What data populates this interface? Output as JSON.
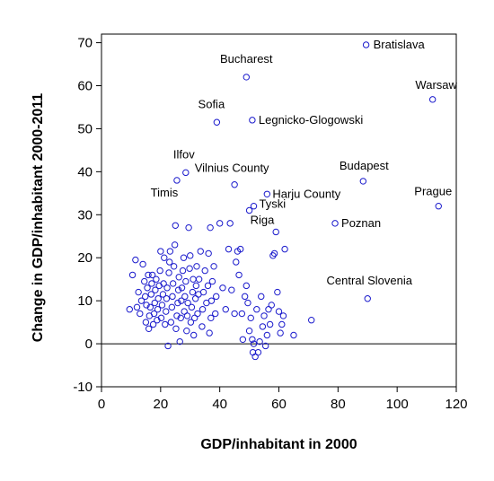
{
  "chart_data": {
    "type": "scatter",
    "title": "",
    "xlabel": "GDP/inhabitant in 2000",
    "ylabel": "Change in GDP/inhabitant 2000-2011",
    "xlim": [
      0,
      120
    ],
    "ylim": [
      -10,
      72
    ],
    "xticks": [
      0,
      20,
      40,
      60,
      80,
      100,
      120
    ],
    "yticks": [
      -10,
      0,
      10,
      20,
      30,
      40,
      50,
      60,
      70
    ],
    "zero_line": true,
    "grid": false,
    "marker": "open-circle",
    "colors": {
      "marker": "#1a1acc",
      "axis": "#000000",
      "zero_line": "#000000"
    },
    "labeled_points": [
      {
        "label": "Bratislava",
        "x": 89.5,
        "y": 69.5
      },
      {
        "label": "Bucharest",
        "x": 49,
        "y": 62
      },
      {
        "label": "Warsaw",
        "x": 112,
        "y": 56.8
      },
      {
        "label": "Sofia",
        "x": 39,
        "y": 51.5
      },
      {
        "label": "Legnicko-Glogowski",
        "x": 51,
        "y": 52
      },
      {
        "label": "Ilfov",
        "x": 28.5,
        "y": 39.8
      },
      {
        "label": "Vilnius County",
        "x": 45,
        "y": 37
      },
      {
        "label": "Budapest",
        "x": 88.5,
        "y": 37.8
      },
      {
        "label": "Timis",
        "x": 25.5,
        "y": 38
      },
      {
        "label": "Harju County",
        "x": 56,
        "y": 34.8
      },
      {
        "label": "Prague",
        "x": 114,
        "y": 32
      },
      {
        "label": "Tyski",
        "x": 51.5,
        "y": 32
      },
      {
        "label": "Riga",
        "x": 50,
        "y": 31
      },
      {
        "label": "Poznan",
        "x": 79,
        "y": 28
      },
      {
        "label": "Central Slovenia",
        "x": 90,
        "y": 10.5
      }
    ],
    "points": [
      [
        9.5,
        8
      ],
      [
        10.5,
        16
      ],
      [
        11.5,
        19.5
      ],
      [
        12,
        8.5
      ],
      [
        12.5,
        12
      ],
      [
        13,
        7
      ],
      [
        13.5,
        10
      ],
      [
        14,
        18.5
      ],
      [
        14.5,
        14.5
      ],
      [
        14.8,
        11
      ],
      [
        15,
        5
      ],
      [
        15.2,
        9
      ],
      [
        15.5,
        13
      ],
      [
        15.8,
        16
      ],
      [
        16,
        3.5
      ],
      [
        16.2,
        6.5
      ],
      [
        16.5,
        8.5
      ],
      [
        16.8,
        11.5
      ],
      [
        17,
        14
      ],
      [
        17.2,
        16
      ],
      [
        17.5,
        4.5
      ],
      [
        17.8,
        7
      ],
      [
        18,
        9.5
      ],
      [
        18.2,
        12.5
      ],
      [
        18.5,
        15
      ],
      [
        18.8,
        5.5
      ],
      [
        19,
        8
      ],
      [
        19.2,
        10.5
      ],
      [
        19.5,
        13.5
      ],
      [
        19.8,
        17
      ],
      [
        20,
        21.5
      ],
      [
        20.2,
        6
      ],
      [
        20.5,
        9
      ],
      [
        20.8,
        11.5
      ],
      [
        21,
        14
      ],
      [
        21.2,
        20
      ],
      [
        21.5,
        4.5
      ],
      [
        21.8,
        7.5
      ],
      [
        22,
        10.5
      ],
      [
        22.2,
        13
      ],
      [
        22.5,
        -0.5
      ],
      [
        22.8,
        16.5
      ],
      [
        23,
        19
      ],
      [
        23.2,
        21.5
      ],
      [
        23.5,
        5
      ],
      [
        23.8,
        8.5
      ],
      [
        24,
        11
      ],
      [
        24.2,
        14
      ],
      [
        24.5,
        18
      ],
      [
        24.8,
        23
      ],
      [
        25,
        27.5
      ],
      [
        25.2,
        3.5
      ],
      [
        25.5,
        6.5
      ],
      [
        25.8,
        9.5
      ],
      [
        26,
        12.5
      ],
      [
        26.2,
        15.5
      ],
      [
        26.5,
        0.5
      ],
      [
        26.8,
        6
      ],
      [
        27,
        10
      ],
      [
        27.2,
        13
      ],
      [
        27.5,
        17
      ],
      [
        27.8,
        20
      ],
      [
        28,
        7.5
      ],
      [
        28.2,
        11
      ],
      [
        28.5,
        14.5
      ],
      [
        28.8,
        3
      ],
      [
        29,
        6.5
      ],
      [
        29.2,
        9.5
      ],
      [
        29.5,
        27
      ],
      [
        29.8,
        17.5
      ],
      [
        30,
        20.5
      ],
      [
        30.2,
        5
      ],
      [
        30.5,
        8.5
      ],
      [
        30.8,
        12
      ],
      [
        31,
        15
      ],
      [
        31.2,
        2
      ],
      [
        31.5,
        6
      ],
      [
        31.8,
        10.5
      ],
      [
        32,
        13.5
      ],
      [
        32.2,
        18
      ],
      [
        32.5,
        7
      ],
      [
        32.8,
        11.5
      ],
      [
        33,
        15
      ],
      [
        33.5,
        21.5
      ],
      [
        34,
        4
      ],
      [
        34.2,
        8
      ],
      [
        34.5,
        12
      ],
      [
        35,
        17
      ],
      [
        35.5,
        9.5
      ],
      [
        36,
        13.5
      ],
      [
        36.2,
        21
      ],
      [
        36.5,
        2.5
      ],
      [
        37,
        6
      ],
      [
        37.2,
        10
      ],
      [
        37.5,
        14.5
      ],
      [
        38,
        18
      ],
      [
        38.5,
        7
      ],
      [
        38.8,
        11
      ],
      [
        36.8,
        27
      ],
      [
        40,
        28
      ],
      [
        41,
        13
      ],
      [
        42,
        8
      ],
      [
        43,
        22
      ],
      [
        43.5,
        28
      ],
      [
        44,
        12.5
      ],
      [
        45,
        7
      ],
      [
        45.5,
        19
      ],
      [
        46,
        21.5
      ],
      [
        46.5,
        16
      ],
      [
        47,
        22
      ],
      [
        47.5,
        7
      ],
      [
        47.8,
        1
      ],
      [
        48.5,
        11
      ],
      [
        49,
        13.5
      ],
      [
        49.5,
        9.5
      ],
      [
        50,
        3
      ],
      [
        50.5,
        6
      ],
      [
        51,
        1
      ],
      [
        51.2,
        -2
      ],
      [
        51.5,
        0
      ],
      [
        52,
        -3
      ],
      [
        52.5,
        8
      ],
      [
        53,
        -2
      ],
      [
        53.5,
        0.5
      ],
      [
        54,
        11
      ],
      [
        54.5,
        4
      ],
      [
        55,
        6.5
      ],
      [
        55.5,
        -0.5
      ],
      [
        56,
        2
      ],
      [
        56.5,
        8
      ],
      [
        57,
        4.5
      ],
      [
        57.5,
        9
      ],
      [
        58,
        20.5
      ],
      [
        58.5,
        21
      ],
      [
        59,
        26
      ],
      [
        59.5,
        12
      ],
      [
        60,
        7.5
      ],
      [
        60.5,
        2.5
      ],
      [
        61,
        4.5
      ],
      [
        61.5,
        6.5
      ],
      [
        62,
        22
      ],
      [
        65,
        2
      ],
      [
        71,
        5.5
      ]
    ]
  }
}
